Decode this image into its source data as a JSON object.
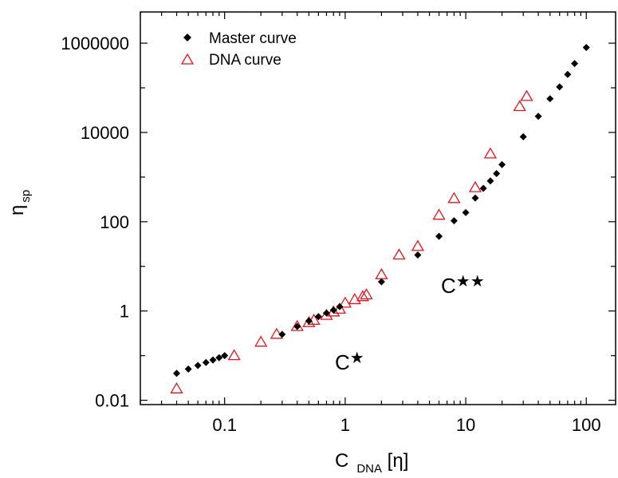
{
  "chart_data": {
    "type": "scatter",
    "x_scale": "log",
    "y_scale": "log",
    "xlim": [
      0.02,
      175
    ],
    "ylim": [
      0.008,
      5000000
    ],
    "x_ticks": [
      {
        "value": 0.1,
        "label": "0.1"
      },
      {
        "value": 1,
        "label": "1"
      },
      {
        "value": 10,
        "label": "10"
      },
      {
        "value": 100,
        "label": "100"
      }
    ],
    "y_ticks": [
      {
        "value": 0.01,
        "label": "0.01"
      },
      {
        "value": 1,
        "label": "1"
      },
      {
        "value": 100,
        "label": "100"
      },
      {
        "value": 10000,
        "label": "10000"
      },
      {
        "value": 1000000,
        "label": "1000000"
      }
    ],
    "xlabel": {
      "main": "C",
      "sub": "DNA",
      "suffix": " [η]"
    },
    "ylabel": {
      "main": "η",
      "sub": "sp"
    },
    "legend_position": "top-left",
    "grid": false,
    "series": [
      {
        "name": "Master curve",
        "marker": "diamond",
        "color": "#000000",
        "points": [
          [
            0.04,
            0.04
          ],
          [
            0.05,
            0.05
          ],
          [
            0.06,
            0.06
          ],
          [
            0.07,
            0.07
          ],
          [
            0.08,
            0.08
          ],
          [
            0.09,
            0.09
          ],
          [
            0.1,
            0.1
          ],
          [
            0.3,
            0.3
          ],
          [
            0.4,
            0.45
          ],
          [
            0.5,
            0.6
          ],
          [
            0.6,
            0.75
          ],
          [
            0.7,
            0.9
          ],
          [
            0.8,
            1.05
          ],
          [
            0.9,
            1.25
          ],
          [
            2.0,
            4.5
          ],
          [
            4.0,
            18
          ],
          [
            6.0,
            47
          ],
          [
            8.0,
            105
          ],
          [
            10.0,
            160
          ],
          [
            12.0,
            340
          ],
          [
            14.0,
            560
          ],
          [
            16.0,
            820
          ],
          [
            18.0,
            1200
          ],
          [
            20.0,
            1900
          ],
          [
            30.0,
            8000
          ],
          [
            40.0,
            23000
          ],
          [
            50.0,
            57000
          ],
          [
            60.0,
            105000
          ],
          [
            70.0,
            200000
          ],
          [
            80.0,
            350000
          ],
          [
            100.0,
            800000
          ]
        ]
      },
      {
        "name": "DNA curve",
        "marker": "triangle-open",
        "color": "#e8141b",
        "points": [
          [
            0.04,
            0.018
          ],
          [
            0.12,
            0.1
          ],
          [
            0.2,
            0.2
          ],
          [
            0.27,
            0.3
          ],
          [
            0.4,
            0.45
          ],
          [
            0.5,
            0.55
          ],
          [
            0.55,
            0.62
          ],
          [
            0.7,
            0.8
          ],
          [
            0.8,
            0.95
          ],
          [
            0.9,
            1.1
          ],
          [
            1.0,
            1.5
          ],
          [
            1.2,
            1.8
          ],
          [
            1.4,
            2.1
          ],
          [
            1.5,
            2.3
          ],
          [
            2.0,
            6.5
          ],
          [
            2.8,
            18
          ],
          [
            4.0,
            28
          ],
          [
            6.0,
            140
          ],
          [
            8.0,
            330
          ],
          [
            12.0,
            580
          ],
          [
            16.0,
            3300
          ],
          [
            28.0,
            38000
          ],
          [
            32.0,
            64000
          ]
        ]
      }
    ],
    "annotations": [
      {
        "base": "C",
        "stars": "★",
        "x": 1.35,
        "y": 0.12
      },
      {
        "base": "C",
        "stars": "★★",
        "x": 10.5,
        "y": 6.0
      }
    ]
  }
}
